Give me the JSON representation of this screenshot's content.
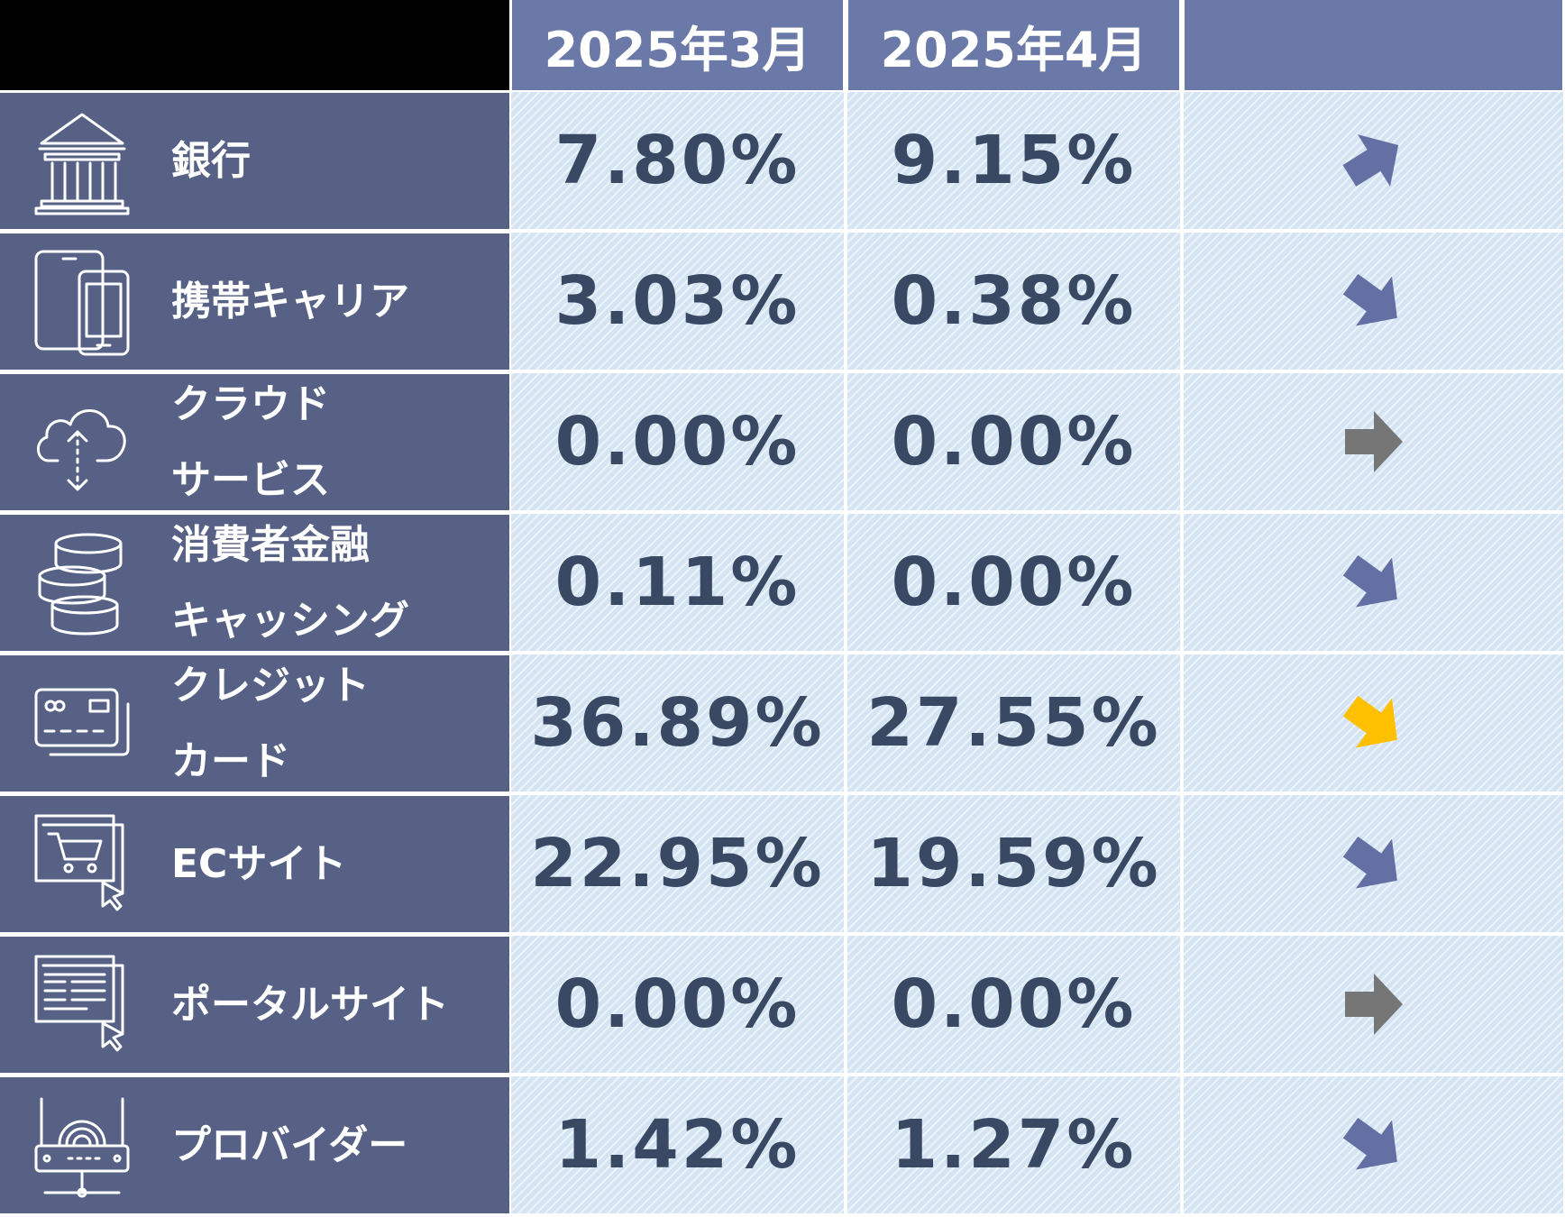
{
  "header": {
    "col1": "2025年3月",
    "col2": "2025年4月",
    "col3": ""
  },
  "colors": {
    "header_bg": "#6b79a8",
    "label_bg": "#566185",
    "value_bg": "#d5e4f2",
    "value_text": "#3a4963",
    "arrow_blue": "#6470a3",
    "arrow_gray": "#767676",
    "arrow_yellow": "#ffc000"
  },
  "chart_data": {
    "type": "table",
    "columns": [
      "2025年3月",
      "2025年4月",
      ""
    ],
    "rows": [
      {
        "category": [
          "銀行"
        ],
        "icon": "bank-icon",
        "march": "7.80%",
        "april": "9.15%",
        "march_value": 7.8,
        "april_value": 9.15,
        "trend": "up",
        "trend_color": "#6470a3"
      },
      {
        "category": [
          "携帯キャリア"
        ],
        "icon": "mobile-devices-icon",
        "march": "3.03%",
        "april": "0.38%",
        "march_value": 3.03,
        "april_value": 0.38,
        "trend": "down",
        "trend_color": "#6470a3"
      },
      {
        "category": [
          "クラウド",
          "サービス"
        ],
        "icon": "cloud-transfer-icon",
        "march": "0.00%",
        "april": "0.00%",
        "march_value": 0.0,
        "april_value": 0.0,
        "trend": "flat",
        "trend_color": "#767676"
      },
      {
        "category": [
          "消費者金融",
          "キャッシング"
        ],
        "icon": "coin-stack-icon",
        "march": "0.11%",
        "april": "0.00%",
        "march_value": 0.11,
        "april_value": 0.0,
        "trend": "down",
        "trend_color": "#6470a3"
      },
      {
        "category": [
          "クレジット",
          "カード"
        ],
        "icon": "credit-card-icon",
        "march": "36.89%",
        "april": "27.55%",
        "march_value": 36.89,
        "april_value": 27.55,
        "trend": "down",
        "trend_color": "#ffc000"
      },
      {
        "category": [
          "ECサイト"
        ],
        "icon": "shopping-cart-screen-icon",
        "march": "22.95%",
        "april": "19.59%",
        "march_value": 22.95,
        "april_value": 19.59,
        "trend": "down",
        "trend_color": "#6470a3"
      },
      {
        "category": [
          "ポータルサイト"
        ],
        "icon": "portal-screen-icon",
        "march": "0.00%",
        "april": "0.00%",
        "march_value": 0.0,
        "april_value": 0.0,
        "trend": "flat",
        "trend_color": "#767676"
      },
      {
        "category": [
          "プロバイダー"
        ],
        "icon": "router-icon",
        "march": "1.42%",
        "april": "1.27%",
        "march_value": 1.42,
        "april_value": 1.27,
        "trend": "down",
        "trend_color": "#6470a3"
      }
    ]
  }
}
